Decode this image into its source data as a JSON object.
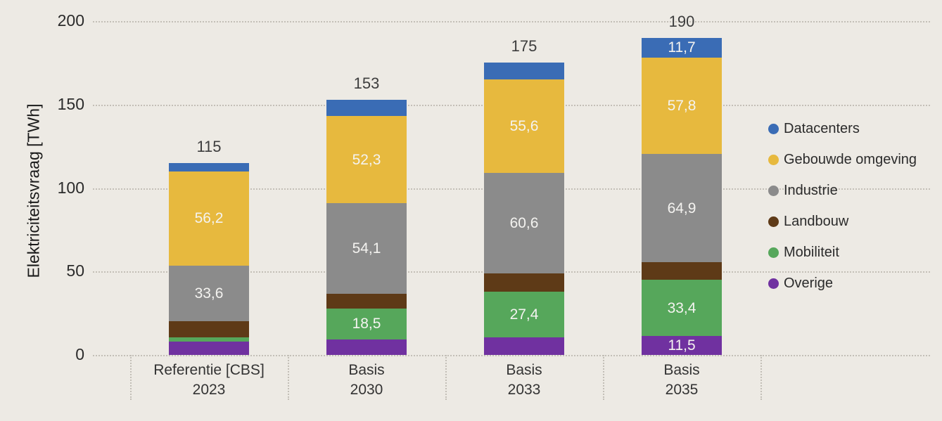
{
  "chart_data": {
    "type": "bar",
    "subtype": "stacked-vertical",
    "title": "",
    "xlabel": "",
    "ylabel": "Elektriciteitsvraag [TWh]",
    "ylim": [
      0,
      200
    ],
    "yticks": [
      0,
      50,
      100,
      150,
      200
    ],
    "grid": "dotted-horizontal",
    "legend_position": "right",
    "stack_note": "series listed top-of-stack first",
    "categories": [
      {
        "line1": "Referentie [CBS]",
        "line2": "2023"
      },
      {
        "line1": "Basis",
        "line2": "2030"
      },
      {
        "line1": "Basis",
        "line2": "2033"
      },
      {
        "line1": "Basis",
        "line2": "2035"
      }
    ],
    "totals": [
      "115",
      "153",
      "175",
      "190"
    ],
    "series": [
      {
        "name": "Datacenters",
        "color": "#3A6CB5",
        "values": [
          5.1,
          9.8,
          10.3,
          11.7
        ],
        "labels": [
          "",
          "",
          "",
          "11,7"
        ]
      },
      {
        "name": "Gebouwde omgeving",
        "color": "#E7B93E",
        "values": [
          56.2,
          52.3,
          55.6,
          57.8
        ],
        "labels": [
          "56,2",
          "52,3",
          "55,6",
          "57,8"
        ]
      },
      {
        "name": "Industrie",
        "color": "#8B8B8B",
        "values": [
          33.6,
          54.1,
          60.6,
          64.9
        ],
        "labels": [
          "33,6",
          "54,1",
          "60,6",
          "64,9"
        ]
      },
      {
        "name": "Landbouw",
        "color": "#5E3A17",
        "values": [
          9.6,
          9.0,
          10.6,
          10.7
        ],
        "labels": [
          "",
          "",
          "",
          ""
        ]
      },
      {
        "name": "Mobiliteit",
        "color": "#56A75B",
        "values": [
          2.5,
          18.5,
          27.4,
          33.4
        ],
        "labels": [
          "",
          "18,5",
          "27,4",
          "33,4"
        ]
      },
      {
        "name": "Overige",
        "color": "#7031A0",
        "values": [
          8.0,
          9.3,
          10.5,
          11.5
        ],
        "labels": [
          "",
          "",
          "",
          "11,5"
        ]
      }
    ]
  }
}
